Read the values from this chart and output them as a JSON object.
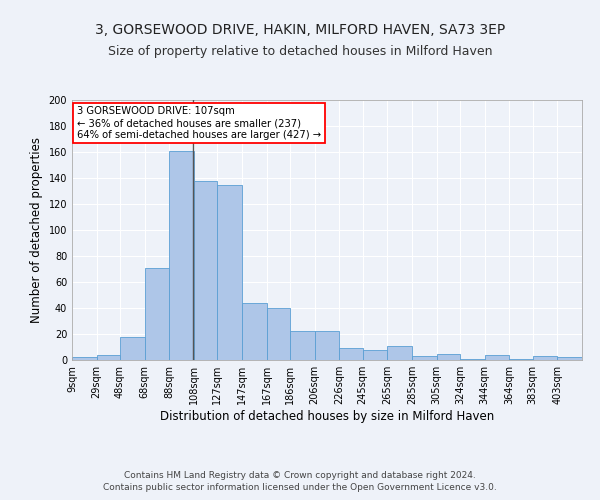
{
  "title": "3, GORSEWOOD DRIVE, HAKIN, MILFORD HAVEN, SA73 3EP",
  "subtitle": "Size of property relative to detached houses in Milford Haven",
  "xlabel": "Distribution of detached houses by size in Milford Haven",
  "ylabel": "Number of detached properties",
  "footnote1": "Contains HM Land Registry data © Crown copyright and database right 2024.",
  "footnote2": "Contains public sector information licensed under the Open Government Licence v3.0.",
  "bar_labels": [
    "9sqm",
    "29sqm",
    "48sqm",
    "68sqm",
    "88sqm",
    "108sqm",
    "127sqm",
    "147sqm",
    "167sqm",
    "186sqm",
    "206sqm",
    "226sqm",
    "245sqm",
    "265sqm",
    "285sqm",
    "305sqm",
    "324sqm",
    "344sqm",
    "364sqm",
    "383sqm",
    "403sqm"
  ],
  "bar_values": [
    2,
    4,
    18,
    71,
    161,
    138,
    135,
    44,
    40,
    22,
    22,
    9,
    8,
    11,
    3,
    5,
    1,
    4,
    1,
    3,
    2
  ],
  "bin_edges": [
    9,
    29,
    48,
    68,
    88,
    108,
    127,
    147,
    167,
    186,
    206,
    226,
    245,
    265,
    285,
    305,
    324,
    344,
    364,
    383,
    403,
    423
  ],
  "bar_color": "#aec6e8",
  "bar_edgecolor": "#5a9fd4",
  "property_size": 107,
  "vline_color": "#555555",
  "annotation_text": "3 GORSEWOOD DRIVE: 107sqm\n← 36% of detached houses are smaller (237)\n64% of semi-detached houses are larger (427) →",
  "annotation_box_edgecolor": "red",
  "annotation_box_facecolor": "white",
  "ylim": [
    0,
    200
  ],
  "yticks": [
    0,
    20,
    40,
    60,
    80,
    100,
    120,
    140,
    160,
    180,
    200
  ],
  "background_color": "#eef2f9",
  "grid_color": "#ffffff",
  "title_fontsize": 10,
  "subtitle_fontsize": 9,
  "axis_label_fontsize": 8.5,
  "tick_fontsize": 7,
  "footnote_fontsize": 6.5
}
